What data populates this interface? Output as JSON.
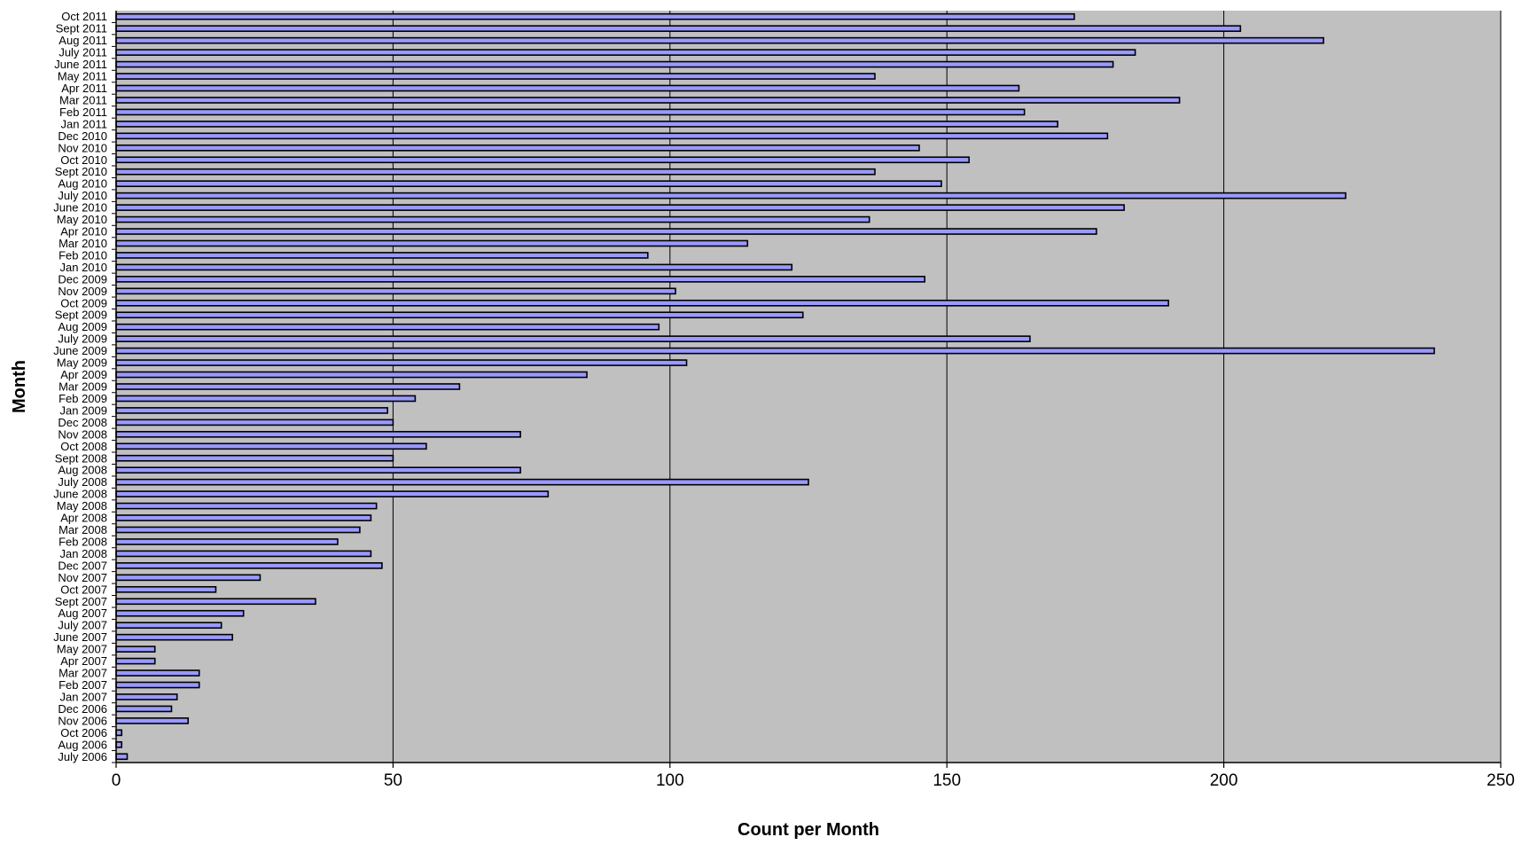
{
  "chart_data": {
    "type": "bar",
    "orientation": "horizontal",
    "title": "",
    "xlabel": "Count per Month",
    "ylabel": "Month",
    "xlim": [
      0,
      250
    ],
    "x_ticks": [
      0,
      50,
      100,
      150,
      200,
      250
    ],
    "grid": "vertical gridlines at major ticks",
    "legend": "none",
    "colors": {
      "plot_background": "#c0c0c0",
      "bar_fill": "#9999ff",
      "bar_edge": "#000000",
      "gridline": "#000000"
    },
    "categories": [
      "July 2006",
      "Aug 2006",
      "Oct 2006",
      "Nov 2006",
      "Dec 2006",
      "Jan 2007",
      "Feb 2007",
      "Mar 2007",
      "Apr 2007",
      "May 2007",
      "June 2007",
      "July 2007",
      "Aug 2007",
      "Sept 2007",
      "Oct 2007",
      "Nov 2007",
      "Dec 2007",
      "Jan 2008",
      "Feb 2008",
      "Mar 2008",
      "Apr 2008",
      "May 2008",
      "June 2008",
      "July 2008",
      "Aug 2008",
      "Sept 2008",
      "Oct 2008",
      "Nov 2008",
      "Dec 2008",
      "Jan 2009",
      "Feb 2009",
      "Mar 2009",
      "Apr 2009",
      "May 2009",
      "June 2009",
      "July 2009",
      "Aug 2009",
      "Sept 2009",
      "Oct 2009",
      "Nov 2009",
      "Dec 2009",
      "Jan 2010",
      "Feb 2010",
      "Mar 2010",
      "Apr 2010",
      "May 2010",
      "June 2010",
      "July 2010",
      "Aug 2010",
      "Sept 2010",
      "Oct 2010",
      "Nov 2010",
      "Dec 2010",
      "Jan 2011",
      "Feb 2011",
      "Mar 2011",
      "Apr 2011",
      "May 2011",
      "June 2011",
      "July 2011",
      "Aug 2011",
      "Sept 2011",
      "Oct 2011"
    ],
    "values": [
      2,
      1,
      1,
      13,
      10,
      11,
      15,
      15,
      7,
      7,
      21,
      19,
      23,
      36,
      18,
      26,
      48,
      46,
      40,
      44,
      46,
      47,
      78,
      125,
      73,
      50,
      56,
      73,
      50,
      49,
      54,
      62,
      85,
      103,
      238,
      165,
      98,
      124,
      190,
      101,
      146,
      122,
      96,
      114,
      177,
      136,
      182,
      222,
      149,
      137,
      154,
      145,
      179,
      170,
      164,
      192,
      163,
      137,
      180,
      184,
      218,
      203,
      173
    ]
  }
}
